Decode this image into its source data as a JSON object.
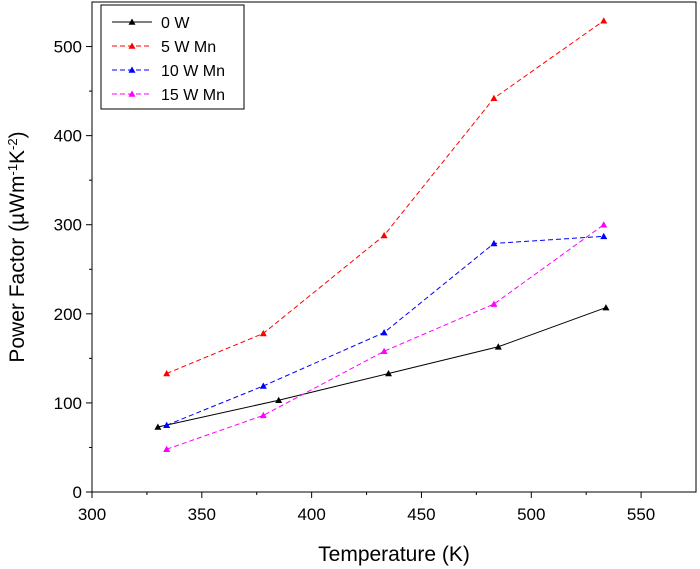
{
  "chart_data": {
    "type": "line",
    "xlabel": "Temperature (K)",
    "ylabel": "Power Factor (µWm-1K-2)",
    "ylabel_parts": {
      "main": "Power Factor (µWm",
      "sup1": "-1",
      "mid": "K",
      "sup2": "-2",
      "end": ")"
    },
    "xlim": [
      300,
      575
    ],
    "ylim": [
      0,
      550
    ],
    "xticks": [
      300,
      350,
      400,
      450,
      500,
      550
    ],
    "yticks": [
      0,
      100,
      200,
      300,
      400,
      500
    ],
    "grid": false,
    "legend_position": "top-left",
    "series": [
      {
        "name": "0 W",
        "color": "#000000",
        "linestyle": "solid",
        "marker": "triangle",
        "points": [
          [
            330,
            73
          ],
          [
            385,
            103
          ],
          [
            435,
            133
          ],
          [
            485,
            163
          ],
          [
            534,
            207
          ]
        ]
      },
      {
        "name": "5 W Mn",
        "color": "#ff0000",
        "linestyle": "dashed",
        "marker": "triangle",
        "points": [
          [
            334,
            133
          ],
          [
            378,
            178
          ],
          [
            433,
            288
          ],
          [
            483,
            442
          ],
          [
            533,
            529
          ]
        ]
      },
      {
        "name": "10 W Mn",
        "color": "#0000ff",
        "linestyle": "dashed",
        "marker": "triangle",
        "points": [
          [
            334,
            75
          ],
          [
            378,
            119
          ],
          [
            433,
            179
          ],
          [
            483,
            279
          ],
          [
            533,
            287
          ]
        ]
      },
      {
        "name": "15 W Mn",
        "color": "#ff00ff",
        "linestyle": "dashed",
        "marker": "triangle",
        "points": [
          [
            334,
            48
          ],
          [
            378,
            86
          ],
          [
            433,
            158
          ],
          [
            483,
            211
          ],
          [
            533,
            300
          ]
        ]
      }
    ]
  }
}
